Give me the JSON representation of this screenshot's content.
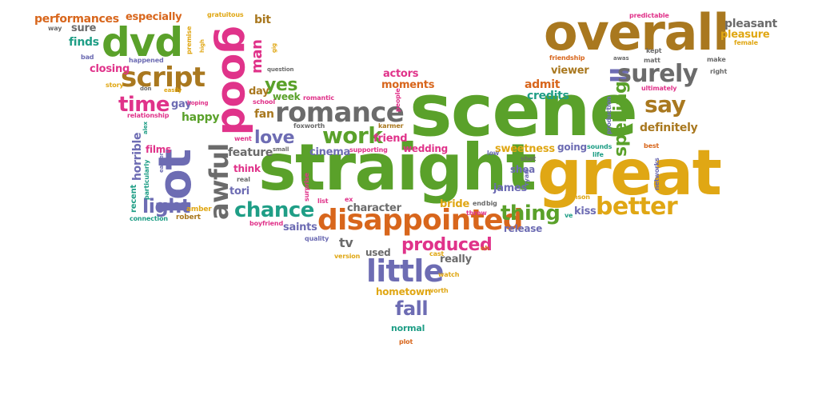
{
  "words": [
    {
      "text": "scene",
      "color": "green"
    },
    {
      "text": "straight",
      "color": "green"
    },
    {
      "text": "great",
      "color": "gold"
    },
    {
      "text": "overall",
      "color": "brown"
    },
    {
      "text": "lot",
      "color": "purple"
    },
    {
      "text": "good",
      "color": "pink"
    },
    {
      "text": "dvd",
      "color": "green"
    },
    {
      "text": "disappointed",
      "color": "orange"
    },
    {
      "text": "romance",
      "color": "gray"
    },
    {
      "text": "little",
      "color": "purple"
    },
    {
      "text": "awful",
      "color": "gray"
    },
    {
      "text": "script",
      "color": "brown"
    },
    {
      "text": "ll",
      "color": "purple"
    },
    {
      "text": "surely",
      "color": "gray"
    },
    {
      "text": "better",
      "color": "gold"
    },
    {
      "text": "say",
      "color": "brown"
    },
    {
      "text": "work",
      "color": "green"
    },
    {
      "text": "chance",
      "color": "teal"
    },
    {
      "text": "thing",
      "color": "green"
    },
    {
      "text": "time",
      "color": "pink"
    },
    {
      "text": "produced",
      "color": "pink"
    },
    {
      "text": "spelling",
      "color": "green"
    },
    {
      "text": "fall",
      "color": "purple"
    },
    {
      "text": "light",
      "color": "purple"
    },
    {
      "text": "love",
      "color": "purple"
    },
    {
      "text": "yes",
      "color": "green"
    },
    {
      "text": "man",
      "color": "pink"
    },
    {
      "text": "performances",
      "color": "orange"
    },
    {
      "text": "especially",
      "color": "orange"
    },
    {
      "text": "sure",
      "color": "gray"
    },
    {
      "text": "finds",
      "color": "teal"
    },
    {
      "text": "closing",
      "color": "pink"
    },
    {
      "text": "pleasant",
      "color": "gray"
    },
    {
      "text": "pleasure",
      "color": "gold"
    },
    {
      "text": "viewer",
      "color": "brown"
    },
    {
      "text": "admit",
      "color": "orange"
    },
    {
      "text": "credits",
      "color": "teal"
    },
    {
      "text": "actors",
      "color": "pink"
    },
    {
      "text": "moments",
      "color": "orange"
    },
    {
      "text": "definitely",
      "color": "brown"
    },
    {
      "text": "sweetness",
      "color": "gold"
    },
    {
      "text": "going",
      "color": "purple"
    },
    {
      "text": "shea",
      "color": "purple"
    },
    {
      "text": "james",
      "color": "purple"
    },
    {
      "text": "bride",
      "color": "gold"
    },
    {
      "text": "kiss",
      "color": "purple"
    },
    {
      "text": "feature",
      "color": "gray"
    },
    {
      "text": "cinema",
      "color": "purple"
    },
    {
      "text": "character",
      "color": "gray"
    },
    {
      "text": "saints",
      "color": "purple"
    },
    {
      "text": "wedding",
      "color": "pink"
    },
    {
      "text": "friend",
      "color": "pink"
    },
    {
      "text": "fan",
      "color": "brown"
    },
    {
      "text": "day",
      "color": "brown"
    },
    {
      "text": "week",
      "color": "green"
    },
    {
      "text": "happy",
      "color": "green"
    },
    {
      "text": "gay",
      "color": "purple"
    },
    {
      "text": "horrible",
      "color": "purple"
    },
    {
      "text": "films",
      "color": "pink"
    },
    {
      "text": "tori",
      "color": "purple"
    },
    {
      "text": "think",
      "color": "pink"
    },
    {
      "text": "tv",
      "color": "gray"
    },
    {
      "text": "used",
      "color": "gray"
    },
    {
      "text": "really",
      "color": "gray"
    },
    {
      "text": "hometown",
      "color": "gold"
    },
    {
      "text": "release",
      "color": "purple"
    },
    {
      "text": "normal",
      "color": "teal"
    },
    {
      "text": "bit",
      "color": "brown"
    },
    {
      "text": "way",
      "color": "gray"
    },
    {
      "text": "bad",
      "color": "purple"
    },
    {
      "text": "story",
      "color": "gold"
    },
    {
      "text": "happened",
      "color": "purple"
    },
    {
      "text": "relationship",
      "color": "pink"
    },
    {
      "text": "recent",
      "color": "teal"
    },
    {
      "text": "particularly",
      "color": "teal"
    },
    {
      "text": "connection",
      "color": "teal"
    },
    {
      "text": "amber",
      "color": "gold"
    },
    {
      "text": "robert",
      "color": "brown"
    },
    {
      "text": "boyfriend",
      "color": "pink"
    },
    {
      "text": "quality",
      "color": "purple"
    },
    {
      "text": "version",
      "color": "gold"
    },
    {
      "text": "cast",
      "color": "gold"
    },
    {
      "text": "watch",
      "color": "gold"
    },
    {
      "text": "worth",
      "color": "gold"
    },
    {
      "text": "plot",
      "color": "orange"
    },
    {
      "text": "oh",
      "color": "orange"
    },
    {
      "text": "friendship",
      "color": "orange"
    },
    {
      "text": "predictable",
      "color": "pink"
    },
    {
      "text": "female",
      "color": "gold"
    },
    {
      "text": "make",
      "color": "gray"
    },
    {
      "text": "right",
      "color": "gray"
    },
    {
      "text": "kept",
      "color": "gray"
    },
    {
      "text": "matt",
      "color": "gray"
    },
    {
      "text": "ultimately",
      "color": "pink"
    },
    {
      "text": "best",
      "color": "orange"
    },
    {
      "text": "sounds",
      "color": "teal"
    },
    {
      "text": "life",
      "color": "teal"
    },
    {
      "text": "shot",
      "color": "gray"
    },
    {
      "text": "ryan",
      "color": "purple"
    },
    {
      "text": "benson",
      "color": "gold"
    },
    {
      "text": "ve",
      "color": "teal"
    },
    {
      "text": "networks",
      "color": "purple"
    },
    {
      "text": "production",
      "color": "purple"
    },
    {
      "text": "supporting",
      "color": "pink"
    },
    {
      "text": "foxworth",
      "color": "gray"
    },
    {
      "text": "karmer",
      "color": "brown"
    },
    {
      "text": "people",
      "color": "pink"
    },
    {
      "text": "school",
      "color": "pink"
    },
    {
      "text": "romantic",
      "color": "pink"
    },
    {
      "text": "went",
      "color": "pink"
    },
    {
      "text": "small",
      "color": "gray"
    },
    {
      "text": "real",
      "color": "gray"
    },
    {
      "text": "surprise",
      "color": "pink"
    },
    {
      "text": "list",
      "color": "pink"
    },
    {
      "text": "ex",
      "color": "pink"
    },
    {
      "text": "end",
      "color": "gray"
    },
    {
      "text": "big",
      "color": "gray"
    },
    {
      "text": "throw",
      "color": "pink"
    },
    {
      "text": "low",
      "color": "purple"
    },
    {
      "text": "gratuitous",
      "color": "gold"
    },
    {
      "text": "premise",
      "color": "gold"
    },
    {
      "text": "high",
      "color": "gold"
    },
    {
      "text": "gig",
      "color": "gold"
    },
    {
      "text": "question",
      "color": "gray"
    },
    {
      "text": "don",
      "color": "gray"
    },
    {
      "text": "easily",
      "color": "gold"
    },
    {
      "text": "hoping",
      "color": "pink"
    },
    {
      "text": "alex",
      "color": "teal"
    },
    {
      "text": "earlier",
      "color": "purple"
    },
    {
      "text": "awas",
      "color": "gray"
    }
  ]
}
